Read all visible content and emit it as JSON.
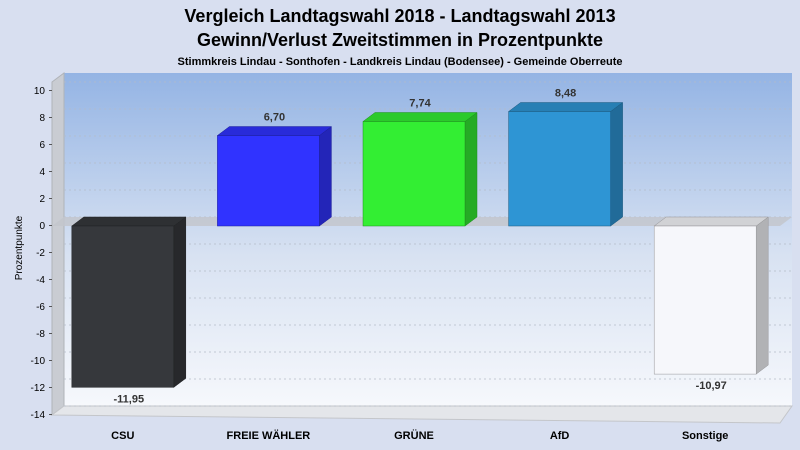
{
  "chart_data": {
    "type": "bar",
    "title": "Vergleich Landtagswahl 2018 - Landtagswahl 2013",
    "subtitle": "Gewinn/Verlust Zweitstimmen in Prozentpunkte",
    "subsubtitle": "Stimmkreis Lindau - Sonthofen - Landkreis Lindau (Bodensee) - Gemeinde Oberreute",
    "ylabel": "Prozentpunkte",
    "xlabel": "",
    "categories": [
      "CSU",
      "FREIE WÄHLER",
      "GRÜNE",
      "AfD",
      "Sonstige"
    ],
    "values": [
      -11.95,
      6.7,
      7.74,
      8.48,
      -10.97
    ],
    "value_labels": [
      "-11,95",
      "6,70",
      "7,74",
      "8,48",
      "-10,97"
    ],
    "colors": [
      "#36383c",
      "#3033ff",
      "#33ee33",
      "#2e95d4",
      "#f6f7fb"
    ],
    "ylim": [
      -14,
      10
    ],
    "yticks": [
      10,
      8,
      6,
      4,
      2,
      0,
      -2,
      -4,
      -6,
      -8,
      -10,
      -12,
      -14
    ],
    "grid": true,
    "legend": "none"
  }
}
